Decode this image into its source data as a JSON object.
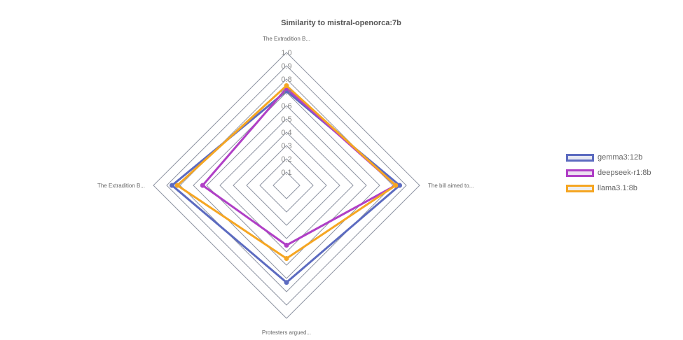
{
  "chart_data": {
    "type": "radar",
    "title": "Similarity to mistral-openorca:7b",
    "axes": [
      "The Extradition B...",
      "The bill aimed to...",
      "Protesters argued...",
      "The Extradition B..."
    ],
    "r_ticks": [
      "0.1",
      "0.2",
      "0.3",
      "0.4",
      "0.5",
      "0.6",
      "0.7",
      "0.8",
      "0.9",
      "1.0"
    ],
    "r_range": [
      0,
      1.0
    ],
    "legend_position": "right",
    "series": [
      {
        "name": "gemma3:12b",
        "color": "#5c6bc0",
        "fill": "#e6e8f3",
        "values": [
          0.71,
          0.85,
          0.73,
          0.86
        ]
      },
      {
        "name": "deepseek-r1:8b",
        "color": "#b03fc6",
        "fill": "#ecdff0",
        "values": [
          0.73,
          0.82,
          0.45,
          0.63
        ]
      },
      {
        "name": "llama3.1:8b",
        "color": "#f5a623",
        "fill": "#eeeeee",
        "values": [
          0.75,
          0.82,
          0.55,
          0.82
        ]
      }
    ]
  }
}
